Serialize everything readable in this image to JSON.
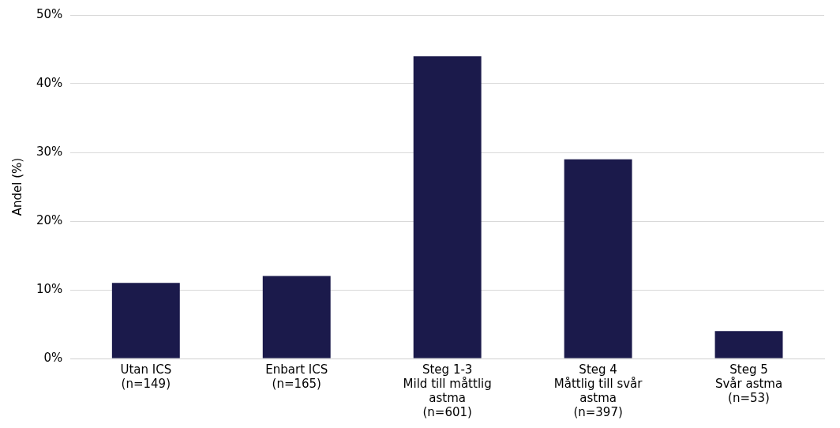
{
  "chart_data": {
    "type": "bar",
    "ylabel": "Andel (%)",
    "categories": [
      "Utan ICS\n(n=149)",
      "Enbart ICS\n(n=165)",
      "Steg 1-3\nMild till måttlig\nastma\n(n=601)",
      "Steg 4\nMåttlig till svår\nastma\n(n=397)",
      "Steg 5\nSvår astma\n(n=53)"
    ],
    "values": [
      11,
      12,
      44,
      29,
      4
    ],
    "color": "#1b1a4b",
    "ylim": [
      0,
      50
    ],
    "yticks": [
      {
        "value": 0,
        "label": "0%"
      },
      {
        "value": 10,
        "label": "10%"
      },
      {
        "value": 20,
        "label": "20%"
      },
      {
        "value": 30,
        "label": "30%"
      },
      {
        "value": 40,
        "label": "40%"
      },
      {
        "value": 50,
        "label": "50%"
      }
    ],
    "grid": "y",
    "legend": false
  }
}
